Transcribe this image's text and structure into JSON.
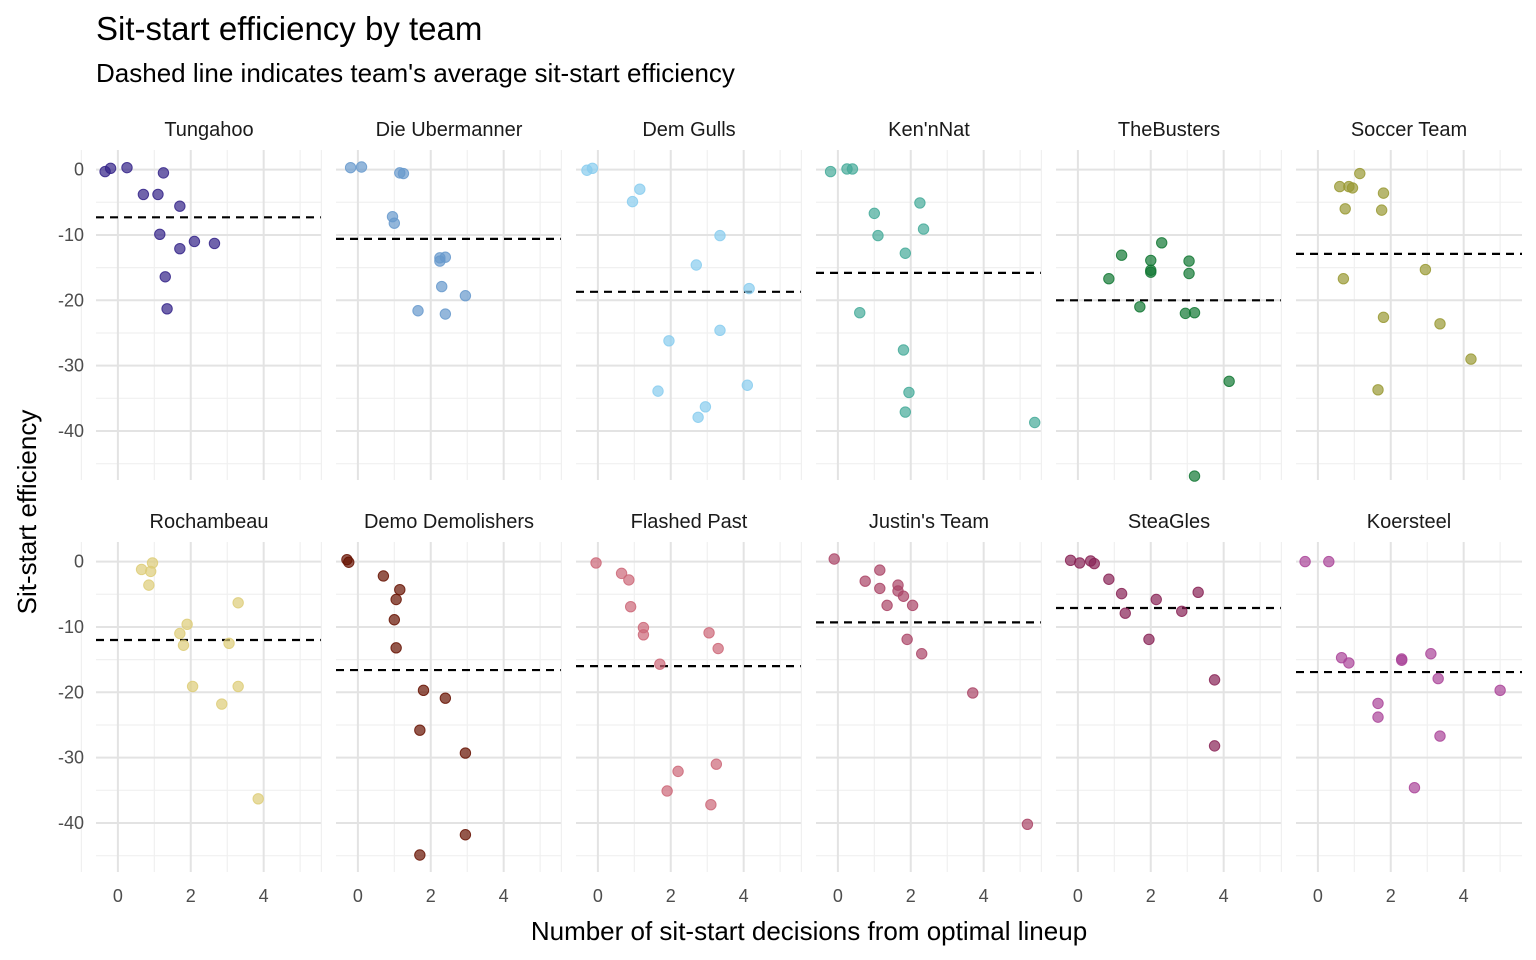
{
  "chart_data": {
    "type": "scatter",
    "title": "Sit-start efficiency by team",
    "subtitle": "Dashed line indicates team's average sit-start efficiency",
    "xlabel": "Number of sit-start decisions from optimal lineup",
    "ylabel": "Sit-start efficiency",
    "xlim": [
      -0.6,
      5.6
    ],
    "ylim": [
      -47.5,
      3
    ],
    "x_ticks": [
      0,
      2,
      4
    ],
    "y_ticks": [
      0,
      -10,
      -20,
      -30,
      -40
    ],
    "grid": true,
    "legend": "none",
    "panels": [
      {
        "team": "Tungahoo",
        "color": "#332288",
        "mean": -7.3,
        "points": [
          [
            -0.35,
            -0.3
          ],
          [
            -0.2,
            0.2
          ],
          [
            0.25,
            0.3
          ],
          [
            1.25,
            -0.5
          ],
          [
            0.7,
            -3.8
          ],
          [
            1.1,
            -3.8
          ],
          [
            1.7,
            -5.6
          ],
          [
            1.15,
            -9.9
          ],
          [
            2.1,
            -11
          ],
          [
            1.7,
            -12.1
          ],
          [
            2.65,
            -11.3
          ],
          [
            1.3,
            -16.4
          ],
          [
            1.35,
            -21.3
          ]
        ]
      },
      {
        "team": "Die Ubermanner",
        "color": "#6699CC",
        "mean": -10.6,
        "points": [
          [
            -0.2,
            0.3
          ],
          [
            0.1,
            0.4
          ],
          [
            1.15,
            -0.5
          ],
          [
            1.25,
            -0.6
          ],
          [
            0.95,
            -7.2
          ],
          [
            1.0,
            -8.2
          ],
          [
            2.25,
            -13.5
          ],
          [
            2.4,
            -13.4
          ],
          [
            2.25,
            -14
          ],
          [
            2.3,
            -17.9
          ],
          [
            1.65,
            -21.6
          ],
          [
            2.4,
            -22.1
          ],
          [
            2.95,
            -19.3
          ]
        ]
      },
      {
        "team": "Dem Gulls",
        "color": "#88CCEE",
        "mean": -18.7,
        "points": [
          [
            -0.3,
            -0.1
          ],
          [
            -0.15,
            0.2
          ],
          [
            1.15,
            -3
          ],
          [
            0.95,
            -4.9
          ],
          [
            3.35,
            -10.1
          ],
          [
            2.7,
            -14.6
          ],
          [
            4.15,
            -18.2
          ],
          [
            1.95,
            -26.2
          ],
          [
            3.35,
            -24.6
          ],
          [
            1.65,
            -33.9
          ],
          [
            4.1,
            -33
          ],
          [
            2.95,
            -36.3
          ],
          [
            2.75,
            -37.9
          ]
        ]
      },
      {
        "team": "Ken'nNat",
        "color": "#44AA99",
        "mean": -15.8,
        "points": [
          [
            -0.2,
            -0.3
          ],
          [
            0.25,
            0.1
          ],
          [
            0.4,
            0.1
          ],
          [
            2.25,
            -5.1
          ],
          [
            1.0,
            -6.7
          ],
          [
            1.1,
            -10.1
          ],
          [
            2.35,
            -9.1
          ],
          [
            1.85,
            -12.8
          ],
          [
            0.6,
            -21.9
          ],
          [
            1.8,
            -27.6
          ],
          [
            1.95,
            -34.1
          ],
          [
            1.85,
            -37.1
          ],
          [
            5.4,
            -38.7
          ]
        ]
      },
      {
        "team": "TheBusters",
        "color": "#117733",
        "mean": -20,
        "points": [
          [
            2.3,
            -11.2
          ],
          [
            1.2,
            -13.1
          ],
          [
            2.0,
            -13.9
          ],
          [
            2.0,
            -15.4
          ],
          [
            2.0,
            -15.7
          ],
          [
            3.05,
            -14
          ],
          [
            3.05,
            -15.9
          ],
          [
            0.85,
            -16.7
          ],
          [
            1.7,
            -21
          ],
          [
            2.95,
            -22
          ],
          [
            3.2,
            -21.9
          ],
          [
            4.15,
            -32.4
          ],
          [
            3.2,
            -46.9
          ]
        ]
      },
      {
        "team": "Soccer Team",
        "color": "#999933",
        "mean": -12.9,
        "points": [
          [
            1.15,
            -0.6
          ],
          [
            0.6,
            -2.6
          ],
          [
            0.85,
            -2.6
          ],
          [
            0.95,
            -2.8
          ],
          [
            1.8,
            -3.6
          ],
          [
            0.75,
            -6
          ],
          [
            1.75,
            -6.2
          ],
          [
            0.7,
            -16.7
          ],
          [
            2.95,
            -15.3
          ],
          [
            1.8,
            -22.6
          ],
          [
            3.35,
            -23.6
          ],
          [
            4.2,
            -29
          ],
          [
            1.65,
            -33.7
          ]
        ]
      },
      {
        "team": "Rochambeau",
        "color": "#DDCC77",
        "mean": -12,
        "points": [
          [
            0.95,
            -0.2
          ],
          [
            0.65,
            -1.2
          ],
          [
            0.9,
            -1.5
          ],
          [
            0.85,
            -3.6
          ],
          [
            3.3,
            -6.3
          ],
          [
            1.9,
            -9.6
          ],
          [
            1.7,
            -11
          ],
          [
            1.8,
            -12.8
          ],
          [
            3.05,
            -12.5
          ],
          [
            2.05,
            -19.1
          ],
          [
            3.3,
            -19.1
          ],
          [
            2.85,
            -21.8
          ],
          [
            3.85,
            -36.3
          ]
        ]
      },
      {
        "team": "Demo Demolishers",
        "color": "#661100",
        "mean": -16.6,
        "points": [
          [
            -0.3,
            0.3
          ],
          [
            -0.25,
            -0.1
          ],
          [
            0.7,
            -2.2
          ],
          [
            1.15,
            -4.3
          ],
          [
            1.05,
            -5.8
          ],
          [
            1.0,
            -8.9
          ],
          [
            1.05,
            -13.2
          ],
          [
            1.8,
            -19.7
          ],
          [
            2.4,
            -20.9
          ],
          [
            1.7,
            -25.8
          ],
          [
            2.95,
            -29.3
          ],
          [
            2.95,
            -41.8
          ],
          [
            1.7,
            -44.9
          ]
        ]
      },
      {
        "team": "Flashed Past",
        "color": "#CC6677",
        "mean": -16,
        "points": [
          [
            -0.05,
            -0.2
          ],
          [
            0.65,
            -1.8
          ],
          [
            0.85,
            -2.8
          ],
          [
            0.9,
            -6.9
          ],
          [
            1.25,
            -10.1
          ],
          [
            1.25,
            -11.2
          ],
          [
            3.05,
            -10.9
          ],
          [
            3.3,
            -13.3
          ],
          [
            1.7,
            -15.7
          ],
          [
            2.2,
            -32.1
          ],
          [
            3.25,
            -31
          ],
          [
            1.9,
            -35.1
          ],
          [
            3.1,
            -37.2
          ]
        ]
      },
      {
        "team": "Justin's Team",
        "color": "#AA4466",
        "mean": -9.3,
        "points": [
          [
            -0.1,
            0.4
          ],
          [
            1.15,
            -1.3
          ],
          [
            0.75,
            -3
          ],
          [
            1.15,
            -4.1
          ],
          [
            1.65,
            -3.6
          ],
          [
            1.65,
            -4.5
          ],
          [
            1.8,
            -5.3
          ],
          [
            1.35,
            -6.7
          ],
          [
            2.05,
            -6.7
          ],
          [
            1.9,
            -11.9
          ],
          [
            2.3,
            -14.1
          ],
          [
            3.7,
            -20.1
          ],
          [
            5.2,
            -40.2
          ]
        ]
      },
      {
        "team": "SteaGles",
        "color": "#882255",
        "mean": -7.1,
        "points": [
          [
            -0.2,
            0.2
          ],
          [
            0.05,
            -0.2
          ],
          [
            0.35,
            0.1
          ],
          [
            0.45,
            -0.3
          ],
          [
            0.85,
            -2.7
          ],
          [
            1.2,
            -4.9
          ],
          [
            1.3,
            -7.9
          ],
          [
            2.15,
            -5.8
          ],
          [
            2.85,
            -7.6
          ],
          [
            3.3,
            -4.7
          ],
          [
            1.95,
            -11.9
          ],
          [
            3.75,
            -18.1
          ],
          [
            3.75,
            -28.2
          ]
        ]
      },
      {
        "team": "Koersteel",
        "color": "#AA4499",
        "mean": -16.9,
        "points": [
          [
            -0.35,
            0
          ],
          [
            0.3,
            0
          ],
          [
            0.65,
            -14.7
          ],
          [
            0.85,
            -15.5
          ],
          [
            2.3,
            -14.9
          ],
          [
            2.3,
            -15.1
          ],
          [
            3.1,
            -14.1
          ],
          [
            3.3,
            -17.9
          ],
          [
            1.65,
            -21.7
          ],
          [
            1.65,
            -23.8
          ],
          [
            3.35,
            -26.7
          ],
          [
            2.65,
            -34.6
          ],
          [
            5.0,
            -19.7
          ]
        ]
      }
    ]
  }
}
